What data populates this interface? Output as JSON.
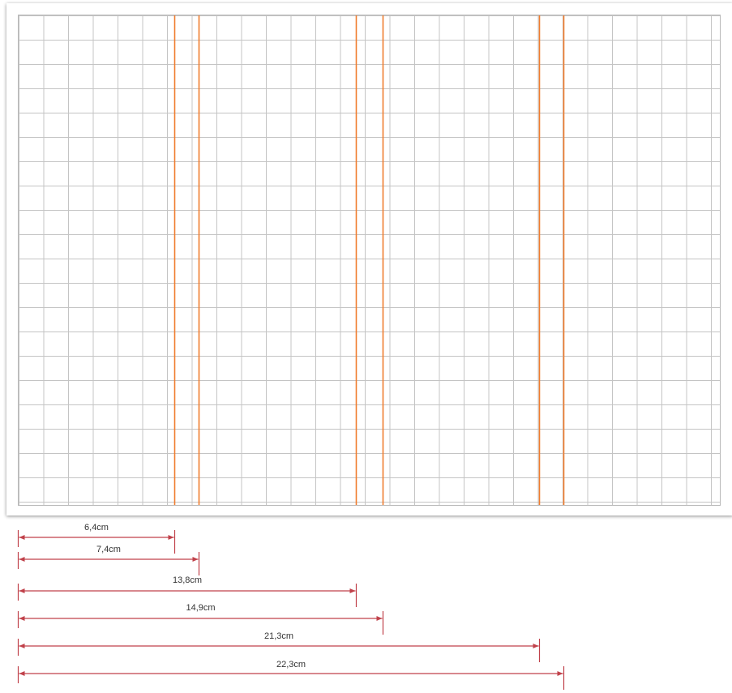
{
  "colors": {
    "fold_line": "#f07c2e",
    "dimension_line": "#c0414a",
    "grid": "#c4c4c4"
  },
  "fold_positions_cm": [
    6.4,
    7.4,
    13.8,
    14.9,
    21.3,
    22.3
  ],
  "dimensions": [
    {
      "label": "6,4cm",
      "value_cm": 6.4
    },
    {
      "label": "7,4cm",
      "value_cm": 7.4
    },
    {
      "label": "13,8cm",
      "value_cm": 13.8
    },
    {
      "label": "14,9cm",
      "value_cm": 14.9
    },
    {
      "label": "21,3cm",
      "value_cm": 21.3
    },
    {
      "label": "22,3cm",
      "value_cm": 22.3
    }
  ]
}
